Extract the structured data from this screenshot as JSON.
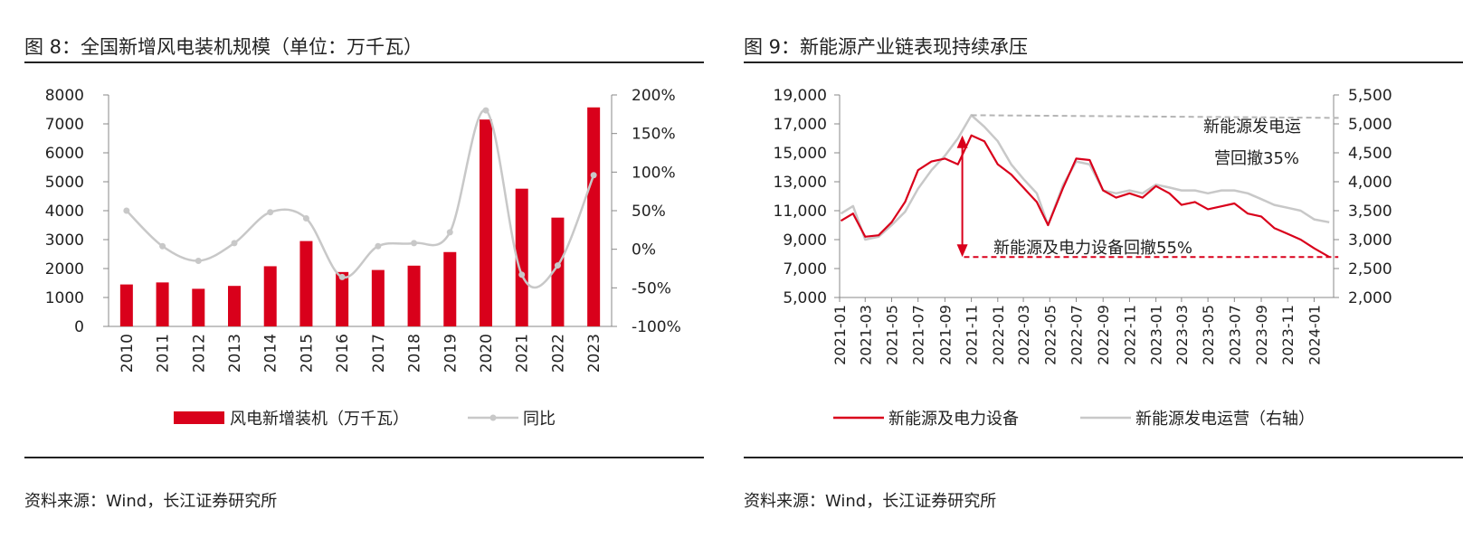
{
  "colors": {
    "red": "#d9001b",
    "gray": "#c8c8c8",
    "dashed_red": "#d9001b",
    "dashed_gray": "#b5b5b5"
  },
  "chart_data": [
    {
      "type": "bar",
      "title": "图 8：全国新增风电装机规模（单位：万千瓦）",
      "categories": [
        "2010",
        "2011",
        "2012",
        "2013",
        "2014",
        "2015",
        "2016",
        "2017",
        "2018",
        "2019",
        "2020",
        "2021",
        "2022",
        "2023"
      ],
      "series": [
        {
          "name": "风电新增装机（万千瓦）",
          "type": "bar",
          "axis": "left",
          "values": [
            1450,
            1520,
            1300,
            1400,
            2080,
            2950,
            1880,
            1950,
            2100,
            2570,
            7150,
            4760,
            3760,
            7570
          ]
        },
        {
          "name": "同比",
          "type": "line",
          "axis": "right",
          "values": [
            50,
            4,
            -15,
            8,
            48,
            40,
            -36,
            4,
            8,
            22,
            180,
            -33,
            -21,
            96
          ]
        }
      ],
      "ylim": [
        0,
        8000
      ],
      "y2lim": [
        -100,
        200
      ],
      "yticks": [
        "0",
        "1000",
        "2000",
        "3000",
        "4000",
        "5000",
        "6000",
        "7000",
        "8000"
      ],
      "y2ticks": [
        "-100%",
        "-50%",
        "0%",
        "50%",
        "100%",
        "150%",
        "200%"
      ],
      "legend_placement": "bottom",
      "grid": false,
      "source": "资料来源：Wind，长江证券研究所"
    },
    {
      "type": "line",
      "title": "图 9：新能源产业链表现持续承压",
      "x_ticks": [
        "2021-01",
        "2021-03",
        "2021-05",
        "2021-07",
        "2021-09",
        "2021-11",
        "2022-01",
        "2022-03",
        "2022-05",
        "2022-07",
        "2022-09",
        "2022-11",
        "2023-01",
        "2023-03",
        "2023-05",
        "2023-07",
        "2023-09",
        "2023-11",
        "2024-01"
      ],
      "x_range": [
        "2021-01",
        "2024-02"
      ],
      "series": [
        {
          "name": "新能源及电力设备",
          "axis": "left",
          "x": [
            "2021-01-04",
            "2021-02-01",
            "2021-03-01",
            "2021-04-01",
            "2021-05-01",
            "2021-06-01",
            "2021-07-01",
            "2021-08-01",
            "2021-09-01",
            "2021-10-01",
            "2021-11-01",
            "2021-12-01",
            "2022-01-01",
            "2022-02-01",
            "2022-03-01",
            "2022-04-01",
            "2022-04-27",
            "2022-06-01",
            "2022-07-01",
            "2022-08-01",
            "2022-09-01",
            "2022-10-01",
            "2022-11-01",
            "2022-12-01",
            "2023-01-01",
            "2023-02-01",
            "2023-03-01",
            "2023-04-01",
            "2023-05-01",
            "2023-06-01",
            "2023-07-01",
            "2023-08-01",
            "2023-09-01",
            "2023-10-01",
            "2023-11-01",
            "2023-12-01",
            "2024-01-01",
            "2024-02-05"
          ],
          "y": [
            10300,
            10800,
            9200,
            9300,
            10200,
            11600,
            13800,
            14400,
            14600,
            14200,
            16200,
            15800,
            14200,
            13500,
            12600,
            11600,
            10000,
            12600,
            14600,
            14500,
            12400,
            11900,
            12200,
            11900,
            12700,
            12200,
            11400,
            11600,
            11100,
            11300,
            11500,
            10800,
            10600,
            9800,
            9400,
            9000,
            8400,
            7800
          ]
        },
        {
          "name": "新能源发电运营（右轴）",
          "axis": "right",
          "x": [
            "2021-01-04",
            "2021-02-01",
            "2021-03-01",
            "2021-04-01",
            "2021-05-01",
            "2021-06-01",
            "2021-07-01",
            "2021-08-01",
            "2021-09-01",
            "2021-10-01",
            "2021-11-01",
            "2021-12-01",
            "2022-01-01",
            "2022-02-01",
            "2022-03-01",
            "2022-04-01",
            "2022-04-27",
            "2022-06-01",
            "2022-07-01",
            "2022-08-01",
            "2022-09-01",
            "2022-10-01",
            "2022-11-01",
            "2022-12-01",
            "2023-01-01",
            "2023-02-01",
            "2023-03-01",
            "2023-04-01",
            "2023-05-01",
            "2023-06-01",
            "2023-07-01",
            "2023-08-01",
            "2023-09-01",
            "2023-10-01",
            "2023-11-01",
            "2023-12-01",
            "2024-01-01",
            "2024-02-05"
          ],
          "y": [
            3450,
            3580,
            3000,
            3050,
            3250,
            3480,
            3880,
            4200,
            4450,
            4750,
            5150,
            4950,
            4700,
            4300,
            4050,
            3800,
            3250,
            3950,
            4350,
            4300,
            3850,
            3800,
            3850,
            3800,
            3950,
            3900,
            3850,
            3850,
            3800,
            3850,
            3850,
            3800,
            3700,
            3600,
            3550,
            3500,
            3350,
            3300
          ]
        }
      ],
      "ylim": [
        5000,
        19000
      ],
      "y2lim": [
        2000,
        5500
      ],
      "yticks": [
        "5,000",
        "7,000",
        "9,000",
        "11,000",
        "13,000",
        "15,000",
        "17,000",
        "19,000"
      ],
      "y2ticks": [
        "2,000",
        "2,500",
        "3,000",
        "3,500",
        "4,000",
        "4,500",
        "5,000",
        "5,500"
      ],
      "annotations": {
        "operation_drawdown_line1": "新能源发电运",
        "operation_drawdown_line2": "营回撤35%",
        "equipment_drawdown": "新能源及电力设备回撤55%"
      },
      "legend_placement": "bottom",
      "grid": false,
      "source": "资料来源：Wind，长江证券研究所"
    }
  ]
}
